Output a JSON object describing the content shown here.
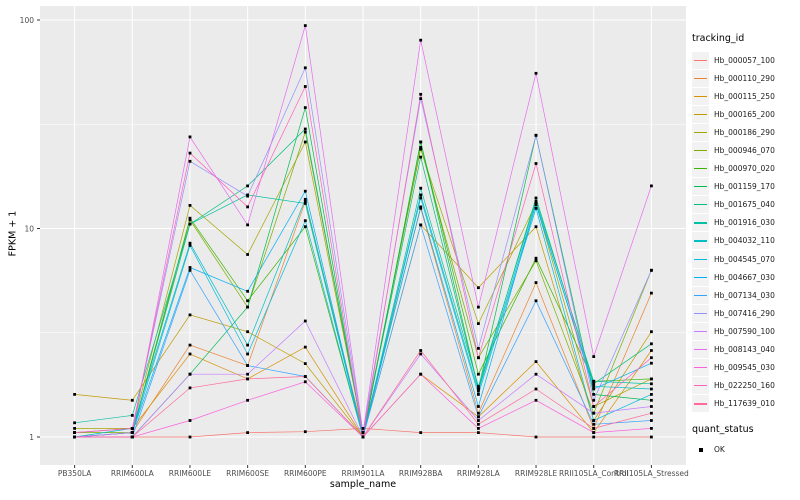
{
  "figure": {
    "y_axis_title": "FPKM + 1",
    "x_axis_title": "sample_name"
  },
  "legend": {
    "title": "tracking_id",
    "quant_title": "quant_status",
    "quant_ok": "OK",
    "quant_marker": "black-square"
  },
  "chart_data": {
    "type": "line",
    "title": "",
    "xlabel": "sample_name",
    "ylabel": "FPKM + 1",
    "y_scale": "log10",
    "ylim": [
      0.79,
      126
    ],
    "y_major_ticks": [
      1,
      10,
      100
    ],
    "y_minor_ticks": [
      3.162,
      31.62
    ],
    "grid": "white major and minor on gray panel",
    "panel_bg": "#EBEBEB",
    "grid_color": "#FFFFFF",
    "tick_label_color": "#4D4D4D",
    "point_shape": "black-square",
    "legend_position": "right",
    "categories": [
      "PB350LA",
      "RRIM600LA",
      "RRIM600LE",
      "RRIM600SE",
      "RRIM600PE",
      "RRIM901LA",
      "RRIM928BA",
      "RRIM928LA",
      "RRIM928LE",
      "RRII105LA_Control",
      "RRII105LA_Stressed"
    ],
    "series": [
      {
        "name": "Hb_000057_100",
        "color": "#F8766D",
        "values": [
          1.0,
          1.0,
          1.0,
          1.05,
          1.06,
          1.1,
          1.05,
          1.05,
          1.0,
          1.0,
          1.0
        ]
      },
      {
        "name": "Hb_000110_290",
        "color": "#EA8331",
        "values": [
          1.0,
          1.05,
          2.76,
          2.2,
          13.5,
          1.05,
          12.5,
          1.3,
          5.5,
          1.1,
          4.9
        ]
      },
      {
        "name": "Hb_000115_250",
        "color": "#D89000",
        "values": [
          1.05,
          1.1,
          2.5,
          1.9,
          2.7,
          1.0,
          2.0,
          1.25,
          2.3,
          1.05,
          2.6
        ]
      },
      {
        "name": "Hb_000165_200",
        "color": "#C09B00",
        "values": [
          1.6,
          1.5,
          3.85,
          3.2,
          2.25,
          1.0,
          10.4,
          5.2,
          10.2,
          1.2,
          3.2
        ]
      },
      {
        "name": "Hb_000186_290",
        "color": "#A3A500",
        "values": [
          1.1,
          1.1,
          12.9,
          7.5,
          26.0,
          1.05,
          24.0,
          3.5,
          13.2,
          1.4,
          1.9
        ]
      },
      {
        "name": "Hb_000946_070",
        "color": "#7CAE00",
        "values": [
          1.05,
          1.05,
          11.0,
          4.2,
          29.0,
          1.05,
          24.5,
          2.4,
          7.0,
          1.3,
          6.3
        ]
      },
      {
        "name": "Hb_000970_020",
        "color": "#39B600",
        "values": [
          1.0,
          1.05,
          11.2,
          4.5,
          10.2,
          1.0,
          26.0,
          2.0,
          7.2,
          1.85,
          1.9
        ]
      },
      {
        "name": "Hb_001159_170",
        "color": "#00BB4E",
        "values": [
          1.0,
          1.0,
          2.0,
          4.2,
          38.0,
          1.0,
          26.0,
          1.7,
          28.0,
          1.6,
          1.5
        ]
      },
      {
        "name": "Hb_001675_040",
        "color": "#00BF7D",
        "values": [
          1.0,
          1.05,
          10.5,
          16.0,
          30.0,
          1.05,
          22.0,
          1.7,
          14.0,
          1.8,
          2.8
        ]
      },
      {
        "name": "Hb_001916_030",
        "color": "#00C1A3",
        "values": [
          1.17,
          1.27,
          10.5,
          14.5,
          13.2,
          1.0,
          15.6,
          1.75,
          13.5,
          1.85,
          1.8
        ]
      },
      {
        "name": "Hb_004032_110",
        "color": "#00BFC4",
        "values": [
          1.0,
          1.1,
          8.5,
          2.76,
          13.8,
          1.0,
          14.5,
          1.66,
          13.0,
          1.75,
          1.7
        ]
      },
      {
        "name": "Hb_004545_070",
        "color": "#00BAE0",
        "values": [
          1.0,
          1.05,
          8.3,
          2.5,
          10.9,
          1.0,
          14.0,
          1.6,
          12.5,
          1.2,
          1.6
        ]
      },
      {
        "name": "Hb_004667_030",
        "color": "#00B0F6",
        "values": [
          1.0,
          1.05,
          6.5,
          5.0,
          15.1,
          1.0,
          12.7,
          1.4,
          13.2,
          1.7,
          2.26
        ]
      },
      {
        "name": "Hb_007134_030",
        "color": "#35A2FF",
        "values": [
          1.0,
          1.0,
          6.3,
          2.2,
          1.95,
          1.0,
          10.4,
          1.25,
          4.5,
          1.15,
          1.2
        ]
      },
      {
        "name": "Hb_007416_290",
        "color": "#9590FF",
        "values": [
          1.05,
          1.1,
          21.0,
          14.3,
          59.0,
          1.05,
          42.0,
          2.66,
          28.0,
          1.5,
          6.3
        ]
      },
      {
        "name": "Hb_007590_100",
        "color": "#C77CFF",
        "values": [
          1.0,
          1.0,
          2.0,
          2.0,
          3.6,
          1.0,
          2.5,
          1.2,
          2.0,
          1.3,
          1.4
        ]
      },
      {
        "name": "Hb_008143_040",
        "color": "#E76BF3",
        "values": [
          1.0,
          1.05,
          27.5,
          10.4,
          94.0,
          1.05,
          80.0,
          4.2,
          55.5,
          2.43,
          16.0
        ]
      },
      {
        "name": "Hb_009545_030",
        "color": "#FA62DB",
        "values": [
          1.0,
          1.0,
          1.2,
          1.5,
          1.84,
          1.0,
          2.0,
          1.1,
          1.5,
          1.05,
          1.1
        ]
      },
      {
        "name": "Hb_022250_160",
        "color": "#FF62BC",
        "values": [
          1.05,
          1.1,
          23.0,
          12.7,
          48.0,
          1.0,
          44.0,
          2.4,
          20.5,
          1.4,
          2.4
        ]
      },
      {
        "name": "Hb_117639_010",
        "color": "#FF6A98",
        "values": [
          1.0,
          1.0,
          1.72,
          1.9,
          1.95,
          1.0,
          2.6,
          1.15,
          1.7,
          1.1,
          1.3
        ]
      }
    ]
  }
}
